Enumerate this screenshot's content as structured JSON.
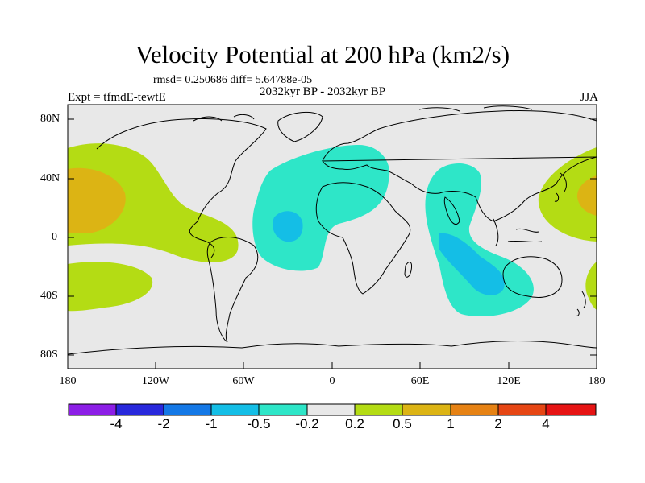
{
  "title": "Velocity Potential at 200 hPa (km2/s)",
  "stats": "rmsd= 0.250686 diff= 5.64788e-05",
  "experiment": "Expt = tfmdE-tewtE",
  "period": "2032kyr BP - 2032kyr BP",
  "season": "JJA",
  "lat_labels": [
    "80N",
    "40N",
    "0",
    "40S",
    "80S"
  ],
  "lon_labels": [
    "180",
    "120W",
    "60W",
    "0",
    "60E",
    "120E",
    "180"
  ],
  "colorbar": {
    "colors": [
      "#8c1ee6",
      "#2828dc",
      "#1478e6",
      "#14bee6",
      "#2ee6c8",
      "#e8e8e8",
      "#b4dc14",
      "#dcb414",
      "#e68214",
      "#e64614",
      "#e61414"
    ],
    "labels": [
      "-4",
      "-2",
      "-1",
      "-0.5",
      "-0.2",
      "0.2",
      "0.5",
      "1",
      "2",
      "4"
    ]
  },
  "colors": {
    "background_field": "#e8e8e8",
    "positive_light": "#b4dc14",
    "positive_mid": "#dcb414",
    "negative_light": "#2ee6c8",
    "negative_mid": "#14bee6"
  }
}
